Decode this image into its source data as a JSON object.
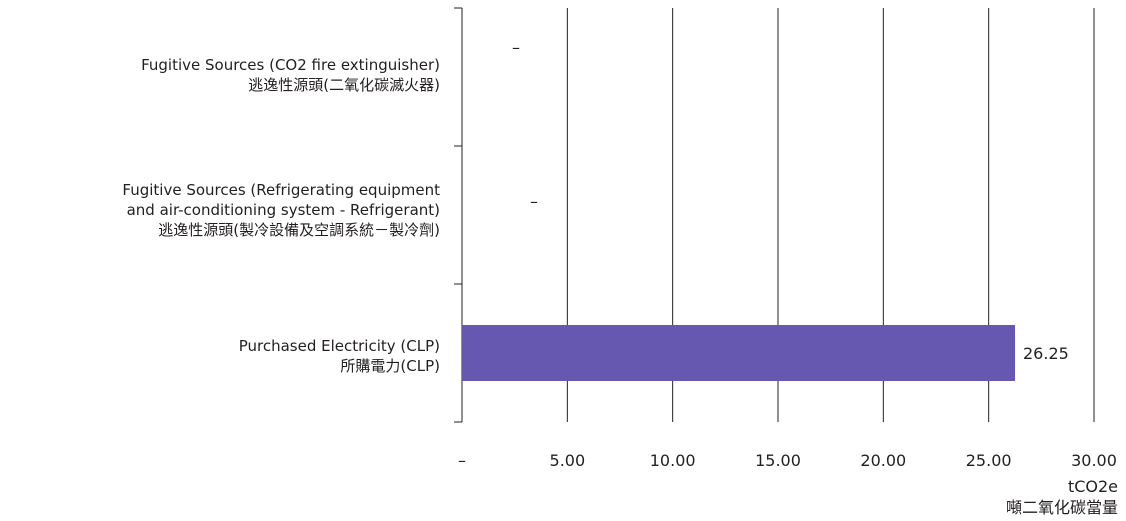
{
  "chart_data": {
    "type": "bar",
    "orientation": "horizontal",
    "categories": [
      {
        "en": "Fugitive Sources (CO2 fire extinguisher)",
        "zh": "逃逸性源頭(二氧化碳滅火器)"
      },
      {
        "en_line1": "Fugitive Sources (Refrigerating equipment",
        "en_line2": "and air-conditioning system - Refrigerant)",
        "zh": "逃逸性源頭(製冷設備及空調系統－製冷劑)"
      },
      {
        "en": "Purchased Electricity (CLP)",
        "zh": "所購電力(CLP)"
      }
    ],
    "values": [
      null,
      null,
      26.25
    ],
    "data_labels": [
      "–",
      "–",
      "26.25"
    ],
    "xlim": [
      0,
      30
    ],
    "x_ticks": [
      0,
      5,
      10,
      15,
      20,
      25,
      30
    ],
    "x_tick_labels": [
      "–",
      "5.00",
      "10.00",
      "15.00",
      "20.00",
      "25.00",
      "30.00"
    ],
    "xlabel_line1": "tCO2e",
    "xlabel_line2": "噸二氧化碳當量",
    "grid": "vertical",
    "bar_color": "#6657b0"
  }
}
